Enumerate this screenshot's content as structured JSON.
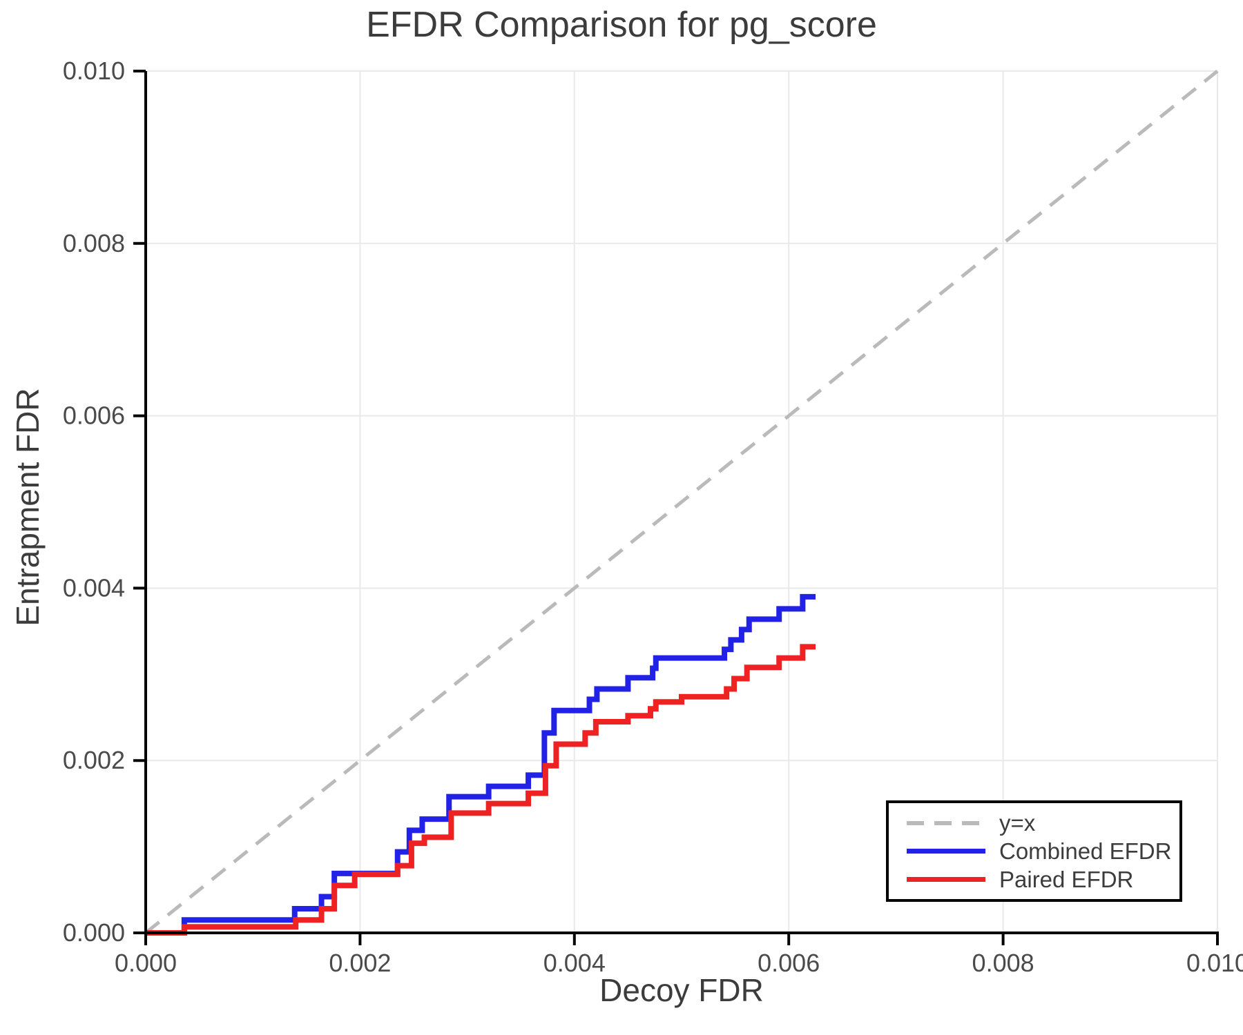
{
  "title": "EFDR Comparison for pg_score",
  "axes": {
    "x_label": "Decoy FDR",
    "y_label": "Entrapment FDR"
  },
  "legend": {
    "position": "lower right",
    "items": [
      {
        "label": "y=x"
      },
      {
        "label": "Combined EFDR"
      },
      {
        "label": "Paired EFDR"
      }
    ]
  },
  "colors": {
    "identity_line": "#bababa",
    "combined_line": "#2222e6",
    "paired_line": "#ee2222",
    "grid": "#e9e9e9",
    "spine": "#000000",
    "title_text": "#3c3c3c",
    "tick_text": "#4a4a4a"
  },
  "chart_data": {
    "type": "line",
    "title": "EFDR Comparison for pg_score",
    "xlabel": "Decoy FDR",
    "ylabel": "Entrapment FDR",
    "xlim": [
      0.0,
      0.01
    ],
    "ylim": [
      0.0,
      0.01
    ],
    "grid": true,
    "legend_position": "lower right",
    "x_ticks": [
      0.0,
      0.002,
      0.004,
      0.006,
      0.008,
      0.01
    ],
    "y_ticks": [
      0.0,
      0.002,
      0.004,
      0.006,
      0.008,
      0.01
    ],
    "x_tick_labels": [
      "0.000",
      "0.002",
      "0.004",
      "0.006",
      "0.008",
      "0.010"
    ],
    "y_tick_labels": [
      "0.000",
      "0.002",
      "0.004",
      "0.006",
      "0.008",
      "0.010"
    ],
    "series": [
      {
        "name": "y=x",
        "style": "dashed",
        "color": "#bababa",
        "points": [
          [
            0.0,
            0.0
          ],
          [
            0.01,
            0.01
          ]
        ]
      },
      {
        "name": "Combined EFDR",
        "style": "step",
        "color": "#2222e6",
        "points": [
          [
            0.0,
            0.0
          ],
          [
            0.00036,
            0.00015
          ],
          [
            0.00139,
            0.00028
          ],
          [
            0.00164,
            0.00042
          ],
          [
            0.00176,
            0.00069
          ],
          [
            0.00235,
            0.00094
          ],
          [
            0.00246,
            0.00119
          ],
          [
            0.00258,
            0.00132
          ],
          [
            0.00283,
            0.00158
          ],
          [
            0.0032,
            0.0017
          ],
          [
            0.00357,
            0.00183
          ],
          [
            0.00372,
            0.00232
          ],
          [
            0.00381,
            0.00258
          ],
          [
            0.00414,
            0.00271
          ],
          [
            0.00421,
            0.00283
          ],
          [
            0.0045,
            0.00296
          ],
          [
            0.00473,
            0.00307
          ],
          [
            0.00476,
            0.00319
          ],
          [
            0.0054,
            0.00329
          ],
          [
            0.00546,
            0.0034
          ],
          [
            0.00556,
            0.00352
          ],
          [
            0.00563,
            0.00364
          ],
          [
            0.00591,
            0.00376
          ],
          [
            0.00613,
            0.0039
          ],
          [
            0.00625,
            0.0039
          ]
        ]
      },
      {
        "name": "Paired EFDR",
        "style": "step",
        "color": "#ee2222",
        "points": [
          [
            0.0,
            0.0
          ],
          [
            0.00036,
            7e-05
          ],
          [
            0.0014,
            0.00015
          ],
          [
            0.00164,
            0.00028
          ],
          [
            0.00176,
            0.00055
          ],
          [
            0.00195,
            0.00068
          ],
          [
            0.00235,
            0.00078
          ],
          [
            0.00248,
            0.00104
          ],
          [
            0.0026,
            0.00111
          ],
          [
            0.00285,
            0.00139
          ],
          [
            0.0032,
            0.0015
          ],
          [
            0.00357,
            0.00162
          ],
          [
            0.00373,
            0.00194
          ],
          [
            0.00383,
            0.00219
          ],
          [
            0.0041,
            0.00232
          ],
          [
            0.0042,
            0.00245
          ],
          [
            0.0045,
            0.00252
          ],
          [
            0.00471,
            0.0026
          ],
          [
            0.00476,
            0.00268
          ],
          [
            0.005,
            0.00274
          ],
          [
            0.00542,
            0.00283
          ],
          [
            0.00549,
            0.00295
          ],
          [
            0.00561,
            0.00308
          ],
          [
            0.00591,
            0.00319
          ],
          [
            0.00613,
            0.00332
          ],
          [
            0.00625,
            0.00332
          ]
        ]
      }
    ]
  }
}
